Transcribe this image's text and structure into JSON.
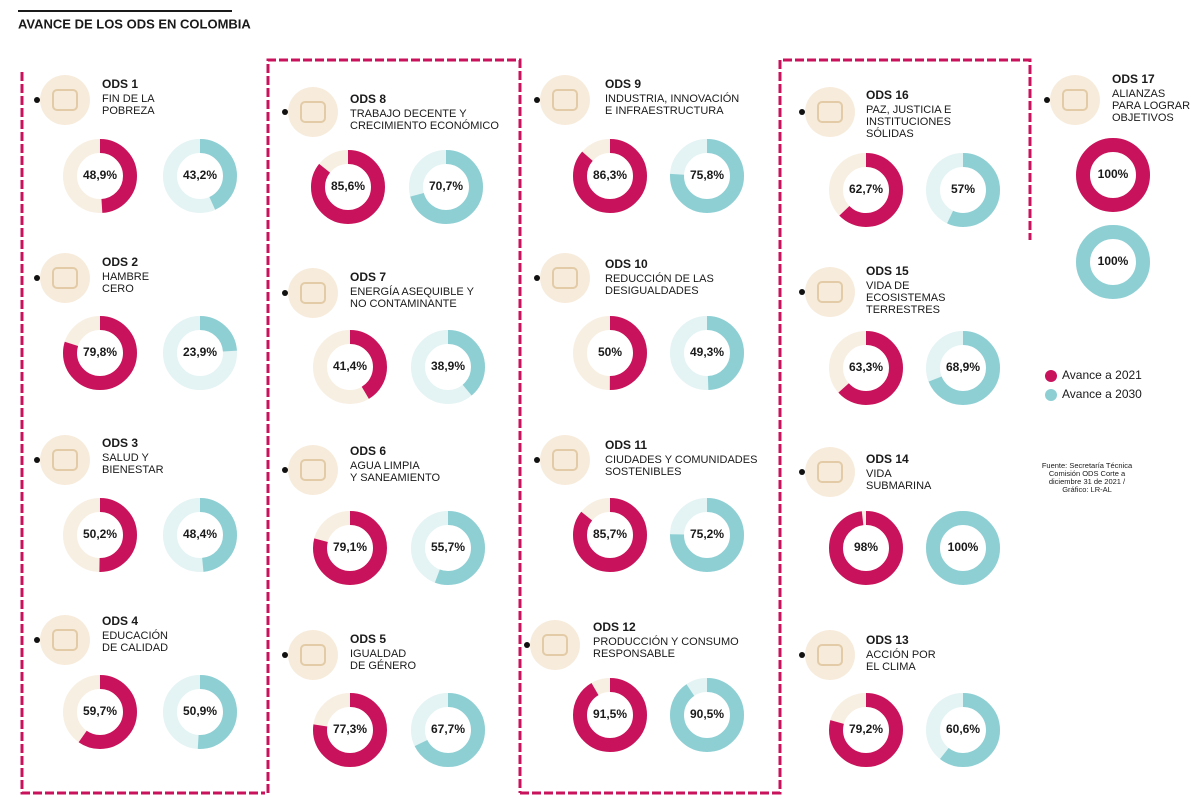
{
  "chart_data": {
    "type": "donut",
    "title": "AVANCE DE LOS ODS EN COLOMBIA",
    "categories": [
      "ODS 1",
      "ODS 2",
      "ODS 3",
      "ODS 4",
      "ODS 5",
      "ODS 6",
      "ODS 7",
      "ODS 8",
      "ODS 9",
      "ODS 10",
      "ODS 11",
      "ODS 12",
      "ODS 13",
      "ODS 14",
      "ODS 15",
      "ODS 16",
      "ODS 17"
    ],
    "descriptions": [
      [
        "FIN DE LA",
        "POBREZA"
      ],
      [
        "HAMBRE",
        "CERO"
      ],
      [
        "SALUD Y",
        "BIENESTAR"
      ],
      [
        "EDUCACIÓN",
        "DE CALIDAD"
      ],
      [
        "IGUALDAD",
        "DE GÉNERO"
      ],
      [
        "AGUA LIMPIA",
        "Y SANEAMIENTO"
      ],
      [
        "ENERGÍA ASEQUIBLE Y",
        "NO CONTAMINANTE"
      ],
      [
        "TRABAJO DECENTE Y",
        "CRECIMIENTO ECONÓMICO"
      ],
      [
        "INDUSTRIA, INNOVACIÓN",
        "E INFRAESTRUCTURA"
      ],
      [
        "REDUCCIÓN DE LAS",
        "DESIGUALDADES"
      ],
      [
        "CIUDADES Y COMUNIDADES",
        "SOSTENIBLES"
      ],
      [
        "PRODUCCIÓN Y CONSUMO",
        "RESPONSABLE"
      ],
      [
        "ACCIÓN POR",
        "EL CLIMA"
      ],
      [
        "VIDA",
        "SUBMARINA"
      ],
      [
        "VIDA DE",
        "ECOSISTEMAS",
        "TERRESTRES"
      ],
      [
        "PAZ, JUSTICIA E",
        "INSTITUCIONES",
        "SÓLIDAS"
      ],
      [
        "ALIANZAS",
        "PARA LOGRAR",
        "OBJETIVOS"
      ]
    ],
    "ylim": [
      0,
      100
    ],
    "series": [
      {
        "name": "Avance a 2021",
        "color": "#c8125b",
        "track_color": "#f8efe3",
        "values": [
          48.9,
          79.8,
          50.2,
          59.7,
          77.3,
          79.1,
          41.4,
          85.6,
          86.3,
          50,
          85.7,
          91.5,
          79.2,
          98,
          63.3,
          62.7,
          100
        ],
        "value_labels": [
          "48,9%",
          "79,8%",
          "50,2%",
          "59,7%",
          "77,3%",
          "79,1%",
          "41,4%",
          "85,6%",
          "86,3%",
          "50%",
          "85,7%",
          "91,5%",
          "79,2%",
          "98%",
          "63,3%",
          "62,7%",
          "100%"
        ]
      },
      {
        "name": "Avance a 2030",
        "color": "#8ecfd4",
        "track_color": "#e4f3f3",
        "values": [
          43.2,
          23.9,
          48.4,
          50.9,
          67.7,
          55.7,
          38.9,
          70.7,
          75.8,
          49.3,
          75.2,
          90.5,
          60.6,
          100,
          68.9,
          57,
          100
        ],
        "value_labels": [
          "43,2%",
          "23,9%",
          "48,4%",
          "50,9%",
          "67,7%",
          "55,7%",
          "38,9%",
          "70,7%",
          "75,8%",
          "49,3%",
          "75,2%",
          "90,5%",
          "60,6%",
          "100%",
          "68,9%",
          "57%",
          "100%"
        ]
      }
    ],
    "source": [
      "Fuente: Secretaría Técnica",
      "Comisión ODS Corte a",
      "diciembre 31 de 2021 /",
      "Gráfico: LR-AL"
    ]
  }
}
